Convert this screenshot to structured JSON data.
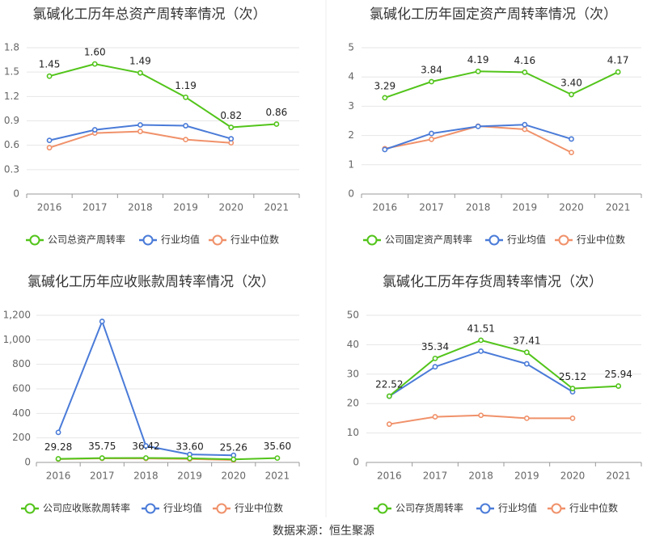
{
  "source": "数据来源：恒生聚源",
  "legend_colors": {
    "company": "#52c41a",
    "avg": "#4a7bd8",
    "median": "#f0916a"
  },
  "chart_data": [
    {
      "type": "line",
      "title": "氯碱化工历年总资产周转率情况（次）",
      "categories": [
        "2016",
        "2017",
        "2018",
        "2019",
        "2020",
        "2021"
      ],
      "y_ticks": [
        "0",
        "0.3",
        "0.6",
        "0.9",
        "1.2",
        "1.5",
        "1.8"
      ],
      "ylim": [
        0,
        1.8
      ],
      "data_labels": [
        "1.45",
        "1.60",
        "1.49",
        "1.19",
        "0.82",
        "0.86"
      ],
      "series": [
        {
          "name": "公司总资产周转率",
          "key": "company",
          "values": [
            1.45,
            1.6,
            1.49,
            1.19,
            0.82,
            0.86
          ]
        },
        {
          "name": "行业均值",
          "key": "avg",
          "values": [
            0.66,
            0.79,
            0.85,
            0.84,
            0.68,
            null
          ]
        },
        {
          "name": "行业中位数",
          "key": "median",
          "values": [
            0.57,
            0.75,
            0.77,
            0.67,
            0.63,
            null
          ]
        }
      ]
    },
    {
      "type": "line",
      "title": "氯碱化工历年固定资产周转率情况（次）",
      "categories": [
        "2016",
        "2017",
        "2018",
        "2019",
        "2020",
        "2021"
      ],
      "y_ticks": [
        "0",
        "1",
        "2",
        "3",
        "4",
        "5"
      ],
      "ylim": [
        0,
        5
      ],
      "data_labels": [
        "3.29",
        "3.84",
        "4.19",
        "4.16",
        "3.40",
        "4.17"
      ],
      "series": [
        {
          "name": "公司固定资产周转率",
          "key": "company",
          "values": [
            3.29,
            3.84,
            4.19,
            4.16,
            3.4,
            4.17
          ]
        },
        {
          "name": "行业均值",
          "key": "avg",
          "values": [
            1.52,
            2.07,
            2.31,
            2.37,
            1.88,
            null
          ]
        },
        {
          "name": "行业中位数",
          "key": "median",
          "values": [
            1.55,
            1.87,
            2.32,
            2.21,
            1.42,
            null
          ]
        }
      ]
    },
    {
      "type": "line",
      "title": "氯碱化工历年应收账款周转率情况（次）",
      "categories": [
        "2016",
        "2017",
        "2018",
        "2019",
        "2020",
        "2021"
      ],
      "y_ticks": [
        "0",
        "200",
        "400",
        "600",
        "800",
        "1,000",
        "1,200"
      ],
      "ylim": [
        0,
        1200
      ],
      "data_labels": [
        "29.28",
        "35.75",
        "36.42",
        "33.60",
        "25.26",
        "35.60"
      ],
      "series": [
        {
          "name": "公司应收账款周转率",
          "key": "company",
          "values": [
            29.28,
            35.75,
            36.42,
            33.6,
            25.26,
            35.6
          ]
        },
        {
          "name": "行业均值",
          "key": "avg",
          "values": [
            245,
            1150,
            135,
            65,
            58,
            null
          ]
        },
        {
          "name": "行业中位数",
          "key": "median",
          "values": [
            27,
            33,
            32,
            28,
            20,
            null
          ]
        }
      ]
    },
    {
      "type": "line",
      "title": "氯碱化工历年存货周转率情况（次）",
      "categories": [
        "2016",
        "2017",
        "2018",
        "2019",
        "2020",
        "2021"
      ],
      "y_ticks": [
        "0",
        "10",
        "20",
        "30",
        "40",
        "50"
      ],
      "ylim": [
        0,
        50
      ],
      "data_labels": [
        "22.52",
        "35.34",
        "41.51",
        "37.41",
        "25.12",
        "25.94"
      ],
      "series": [
        {
          "name": "公司存货周转率",
          "key": "company",
          "values": [
            22.52,
            35.34,
            41.51,
            37.41,
            25.12,
            25.94
          ]
        },
        {
          "name": "行业均值",
          "key": "avg",
          "values": [
            22.5,
            32.5,
            37.8,
            33.5,
            24.0,
            null
          ]
        },
        {
          "name": "行业中位数",
          "key": "median",
          "values": [
            13.0,
            15.5,
            16.0,
            15.0,
            15.0,
            null
          ]
        }
      ]
    }
  ]
}
